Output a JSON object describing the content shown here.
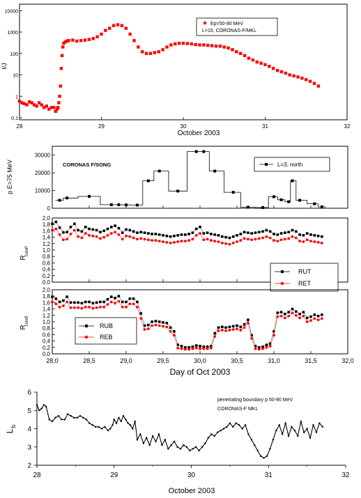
{
  "chart_data": [
    {
      "type": "scatter",
      "xlabel": "October 2003",
      "ylabel": "I/J",
      "yscale": "log",
      "xlim": [
        28,
        32
      ],
      "ylim": [
        0.08,
        20000
      ],
      "xticks": [
        "28",
        "29",
        "30",
        "31",
        "32"
      ],
      "yticks": [
        "0,1",
        "1",
        "10",
        "100",
        "1000",
        "10000"
      ],
      "legend": {
        "position": "top-right",
        "entries": [
          "Ep=50-90 MeV",
          "L>15, CORONAS-F/MKL"
        ]
      },
      "series": [
        {
          "name": "Ep=50-90 MeV",
          "color": "#ff0000",
          "x": [
            28.0,
            28.03,
            28.06,
            28.09,
            28.12,
            28.15,
            28.18,
            28.21,
            28.24,
            28.27,
            28.3,
            28.33,
            28.36,
            28.39,
            28.42,
            28.44,
            28.46,
            28.47,
            28.48,
            28.49,
            28.5,
            28.51,
            28.52,
            28.53,
            28.54,
            28.56,
            28.58,
            28.6,
            28.65,
            28.7,
            28.75,
            28.8,
            28.85,
            28.9,
            28.95,
            29.0,
            29.05,
            29.1,
            29.15,
            29.2,
            29.25,
            29.3,
            29.35,
            29.4,
            29.45,
            29.5,
            29.55,
            29.6,
            29.65,
            29.7,
            29.75,
            29.8,
            29.85,
            29.9,
            29.95,
            30.0,
            30.05,
            30.1,
            30.15,
            30.2,
            30.25,
            30.3,
            30.35,
            30.4,
            30.45,
            30.5,
            30.55,
            30.6,
            30.65,
            30.7,
            30.75,
            30.8,
            30.85,
            30.9,
            30.95,
            31.0,
            31.05,
            31.1,
            31.15,
            31.2,
            31.25,
            31.3,
            31.35,
            31.4,
            31.45,
            31.5,
            31.55,
            31.6,
            31.65
          ],
          "y": [
            0.6,
            0.5,
            0.45,
            0.4,
            0.55,
            0.5,
            0.4,
            0.35,
            0.5,
            0.4,
            0.3,
            0.35,
            0.25,
            0.3,
            0.3,
            0.2,
            0.25,
            0.3,
            0.5,
            1,
            3,
            20,
            80,
            200,
            300,
            350,
            380,
            400,
            420,
            380,
            400,
            420,
            450,
            500,
            600,
            800,
            1200,
            1500,
            2000,
            2200,
            2000,
            1500,
            800,
            400,
            200,
            120,
            100,
            100,
            110,
            120,
            150,
            200,
            250,
            280,
            300,
            300,
            290,
            280,
            260,
            250,
            250,
            240,
            230,
            220,
            220,
            200,
            180,
            150,
            120,
            100,
            80,
            60,
            50,
            40,
            35,
            30,
            25,
            20,
            16,
            14,
            12,
            10,
            9,
            8,
            7,
            6,
            5,
            4,
            3
          ]
        }
      ]
    },
    {
      "type": "line",
      "ylabel": "p E>75 MeV",
      "xlim": [
        28,
        32
      ],
      "ylim": [
        0,
        35000
      ],
      "yticks": [
        "0",
        "10000",
        "20000",
        "30000"
      ],
      "annotation": "CORONAS F/SONG",
      "legend": {
        "position": "top-right",
        "entries": [
          "L=3, north"
        ]
      },
      "series": [
        {
          "name": "L=3, north",
          "color": "#000000",
          "x": [
            28.1,
            28.2,
            28.5,
            28.8,
            28.9,
            29.0,
            29.15,
            29.3,
            29.45,
            29.7,
            29.95,
            30.05,
            30.2,
            30.45,
            30.65,
            30.85,
            31.0,
            31.1,
            31.2,
            31.25,
            31.35,
            31.55,
            31.65
          ],
          "y": [
            4500,
            5800,
            6700,
            2000,
            2000,
            1900,
            1800,
            15500,
            21000,
            9700,
            32000,
            32000,
            21000,
            9000,
            600,
            400,
            6500,
            4800,
            3700,
            15500,
            4500,
            2500,
            800
          ]
        }
      ]
    },
    {
      "type": "line",
      "ylabel": "R cutoff",
      "xlim": [
        28,
        32
      ],
      "ylim": [
        0,
        2
      ],
      "yticks": [
        "0,0",
        "0,2",
        "0,4",
        "0,6",
        "0,8",
        "1,0",
        "1,2",
        "1,4",
        "1,6",
        "1,8",
        "2,0"
      ],
      "legend": {
        "position": "bottom-right",
        "entries": [
          "RUT",
          "RET"
        ]
      },
      "x": [
        28.0,
        28.05,
        28.1,
        28.15,
        28.2,
        28.25,
        28.3,
        28.35,
        28.4,
        28.45,
        28.5,
        28.55,
        28.6,
        28.65,
        28.7,
        28.75,
        28.8,
        28.85,
        28.9,
        28.95,
        29.0,
        29.05,
        29.1,
        29.15,
        29.2,
        29.25,
        29.3,
        29.35,
        29.4,
        29.45,
        29.5,
        29.55,
        29.6,
        29.65,
        29.7,
        29.75,
        29.8,
        29.85,
        29.9,
        29.95,
        30.0,
        30.05,
        30.1,
        30.15,
        30.2,
        30.25,
        30.3,
        30.35,
        30.4,
        30.45,
        30.5,
        30.55,
        30.6,
        30.65,
        30.7,
        30.75,
        30.8,
        30.85,
        30.9,
        30.95,
        31.0,
        31.05,
        31.1,
        31.15,
        31.2,
        31.25,
        31.3,
        31.35,
        31.4,
        31.45,
        31.5,
        31.55,
        31.6,
        31.65
      ],
      "series": [
        {
          "name": "RUT",
          "color": "#000000",
          "y": [
            1.82,
            1.88,
            1.7,
            1.55,
            1.56,
            1.72,
            1.82,
            1.62,
            1.58,
            1.72,
            1.66,
            1.64,
            1.62,
            1.56,
            1.6,
            1.66,
            1.72,
            1.76,
            1.68,
            1.54,
            1.64,
            1.62,
            1.58,
            1.54,
            1.56,
            1.54,
            1.52,
            1.5,
            1.5,
            1.48,
            1.46,
            1.44,
            1.42,
            1.44,
            1.46,
            1.48,
            1.48,
            1.5,
            1.54,
            1.66,
            1.72,
            1.52,
            1.54,
            1.5,
            1.48,
            1.46,
            1.42,
            1.4,
            1.38,
            1.42,
            1.46,
            1.5,
            1.56,
            1.54,
            1.52,
            1.54,
            1.56,
            1.58,
            1.62,
            1.58,
            1.5,
            1.48,
            1.52,
            1.54,
            1.56,
            1.62,
            1.58,
            1.48,
            1.46,
            1.52,
            1.48,
            1.46,
            1.44,
            1.42
          ]
        },
        {
          "name": "RET",
          "color": "#ff0000",
          "y": [
            1.62,
            1.66,
            1.48,
            1.32,
            1.34,
            1.5,
            1.62,
            1.42,
            1.38,
            1.52,
            1.46,
            1.44,
            1.42,
            1.36,
            1.4,
            1.46,
            1.52,
            1.56,
            1.48,
            1.34,
            1.44,
            1.42,
            1.38,
            1.34,
            1.36,
            1.34,
            1.32,
            1.3,
            1.3,
            1.28,
            1.26,
            1.24,
            1.22,
            1.24,
            1.26,
            1.28,
            1.28,
            1.3,
            1.34,
            1.46,
            1.52,
            1.32,
            1.34,
            1.3,
            1.28,
            1.26,
            1.22,
            1.2,
            1.18,
            1.22,
            1.26,
            1.3,
            1.36,
            1.34,
            1.32,
            1.34,
            1.36,
            1.38,
            1.42,
            1.38,
            1.3,
            1.28,
            1.32,
            1.34,
            1.36,
            1.42,
            1.38,
            1.28,
            1.26,
            1.32,
            1.28,
            1.26,
            1.24,
            1.22
          ]
        }
      ]
    },
    {
      "type": "line",
      "xlabel": "Day of Oct 2003",
      "ylabel": "R cutoff",
      "xlim": [
        28,
        32
      ],
      "ylim": [
        0,
        2
      ],
      "xticks": [
        "28,0",
        "28,5",
        "29,0",
        "29,5",
        "30,0",
        "30,5",
        "31,0",
        "31,5",
        "32,0"
      ],
      "yticks": [
        "0,0",
        "0,2",
        "0,4",
        "0,6",
        "0,8",
        "1,0",
        "1,2",
        "1,4",
        "1,6",
        "1,8",
        "2,0"
      ],
      "legend": {
        "position": "bottom-left",
        "entries": [
          "RUB",
          "REB"
        ]
      },
      "x": [
        28.0,
        28.05,
        28.1,
        28.15,
        28.2,
        28.25,
        28.3,
        28.35,
        28.4,
        28.45,
        28.5,
        28.55,
        28.6,
        28.65,
        28.7,
        28.75,
        28.8,
        28.85,
        28.9,
        28.95,
        29.0,
        29.05,
        29.1,
        29.15,
        29.2,
        29.25,
        29.3,
        29.35,
        29.4,
        29.45,
        29.5,
        29.55,
        29.6,
        29.65,
        29.7,
        29.75,
        29.8,
        29.85,
        29.9,
        29.95,
        30.0,
        30.05,
        30.1,
        30.15,
        30.2,
        30.25,
        30.3,
        30.35,
        30.4,
        30.45,
        30.5,
        30.55,
        30.6,
        30.65,
        30.7,
        30.75,
        30.8,
        30.85,
        30.9,
        30.95,
        31.0,
        31.05,
        31.1,
        31.15,
        31.2,
        31.25,
        31.3,
        31.35,
        31.4,
        31.45,
        31.5,
        31.55,
        31.6,
        31.65
      ],
      "series": [
        {
          "name": "RUB",
          "color": "#000000",
          "y": [
            1.78,
            1.72,
            1.62,
            1.66,
            1.78,
            1.6,
            1.6,
            1.6,
            1.58,
            1.62,
            1.62,
            1.58,
            1.6,
            1.62,
            1.62,
            1.7,
            1.78,
            1.74,
            1.8,
            1.62,
            1.62,
            1.72,
            1.72,
            1.62,
            1.26,
            0.88,
            0.9,
            1.0,
            1.02,
            1.0,
            0.98,
            0.96,
            0.82,
            0.7,
            0.28,
            0.24,
            0.2,
            0.2,
            0.22,
            0.26,
            0.24,
            0.22,
            0.22,
            0.24,
            0.64,
            0.82,
            0.84,
            0.82,
            0.84,
            0.86,
            0.88,
            0.84,
            0.92,
            1.06,
            0.58,
            0.24,
            0.2,
            0.22,
            0.28,
            0.32,
            0.7,
            1.28,
            1.3,
            1.24,
            1.3,
            1.4,
            1.32,
            1.24,
            1.3,
            1.12,
            1.16,
            1.22,
            1.18,
            1.22
          ]
        },
        {
          "name": "REB",
          "color": "#ff0000",
          "y": [
            1.62,
            1.56,
            1.46,
            1.5,
            1.62,
            1.44,
            1.44,
            1.44,
            1.42,
            1.46,
            1.46,
            1.42,
            1.44,
            1.46,
            1.46,
            1.54,
            1.62,
            1.58,
            1.64,
            1.46,
            1.46,
            1.56,
            1.56,
            1.46,
            1.1,
            0.76,
            0.78,
            0.88,
            0.9,
            0.88,
            0.86,
            0.84,
            0.7,
            0.58,
            0.18,
            0.16,
            0.14,
            0.14,
            0.16,
            0.18,
            0.16,
            0.16,
            0.16,
            0.18,
            0.54,
            0.72,
            0.74,
            0.72,
            0.74,
            0.76,
            0.78,
            0.74,
            0.82,
            0.96,
            0.48,
            0.16,
            0.14,
            0.16,
            0.2,
            0.24,
            0.58,
            1.16,
            1.18,
            1.12,
            1.18,
            1.28,
            1.2,
            1.12,
            1.18,
            1.0,
            1.04,
            1.1,
            1.06,
            1.1
          ]
        }
      ]
    },
    {
      "type": "line",
      "xlabel": "October 2003",
      "ylabel": "Lb",
      "xlim": [
        28,
        32
      ],
      "ylim": [
        2,
        6
      ],
      "xticks": [
        "28",
        "29",
        "30",
        "31",
        "32"
      ],
      "yticks": [
        "2",
        "3",
        "4",
        "5",
        "6"
      ],
      "annotation": [
        "penetrating boundary p 50-90 MeV",
        "CORONAS-F MKL"
      ],
      "series": [
        {
          "name": "Lb",
          "color": "#000000",
          "x": [
            28.0,
            28.03,
            28.06,
            28.09,
            28.12,
            28.16,
            28.2,
            28.24,
            28.28,
            28.32,
            28.36,
            28.4,
            28.44,
            28.48,
            28.52,
            28.56,
            28.6,
            28.64,
            28.68,
            28.72,
            28.76,
            28.8,
            28.84,
            28.88,
            28.92,
            28.95,
            28.98,
            29.0,
            29.03,
            29.06,
            29.09,
            29.12,
            29.15,
            29.18,
            29.21,
            29.24,
            29.27,
            29.3,
            29.34,
            29.38,
            29.42,
            29.46,
            29.5,
            29.54,
            29.58,
            29.62,
            29.66,
            29.7,
            29.74,
            29.78,
            29.82,
            29.86,
            29.9,
            29.94,
            29.98,
            30.02,
            30.06,
            30.1,
            30.14,
            30.18,
            30.22,
            30.26,
            30.3,
            30.34,
            30.38,
            30.42,
            30.46,
            30.5,
            30.54,
            30.58,
            30.62,
            30.66,
            30.7,
            30.74,
            30.78,
            30.82,
            30.86,
            30.9,
            30.94,
            30.98,
            31.02,
            31.06,
            31.1,
            31.14,
            31.18,
            31.22,
            31.26,
            31.3,
            31.34,
            31.38,
            31.42,
            31.46,
            31.5,
            31.54,
            31.58,
            31.62,
            31.66,
            31.7
          ],
          "y": [
            5.3,
            5.0,
            5.1,
            5.3,
            5.2,
            4.5,
            4.4,
            4.6,
            4.7,
            4.5,
            4.5,
            4.8,
            4.7,
            4.6,
            4.6,
            4.7,
            4.6,
            4.5,
            4.3,
            4.2,
            4.1,
            4.1,
            4.0,
            4.1,
            3.9,
            4.0,
            4.2,
            4.5,
            4.3,
            4.6,
            4.4,
            4.7,
            4.5,
            4.3,
            4.2,
            4.0,
            4.4,
            3.4,
            3.7,
            3.2,
            3.5,
            3.1,
            3.6,
            3.3,
            3.7,
            3.1,
            3.4,
            2.9,
            3.1,
            3.3,
            3.0,
            2.9,
            3.1,
            3.0,
            2.8,
            2.9,
            3.0,
            2.8,
            3.0,
            3.2,
            3.5,
            3.7,
            3.6,
            3.8,
            3.9,
            4.0,
            4.1,
            4.3,
            4.1,
            4.3,
            4.2,
            4.0,
            4.2,
            3.7,
            3.4,
            3.1,
            2.8,
            2.5,
            2.4,
            2.5,
            2.9,
            3.4,
            3.9,
            4.2,
            3.7,
            4.3,
            3.6,
            4.1,
            3.9,
            3.6,
            4.4,
            3.8,
            4.0,
            3.5,
            4.2,
            3.8,
            4.3,
            4.1
          ]
        }
      ]
    }
  ]
}
